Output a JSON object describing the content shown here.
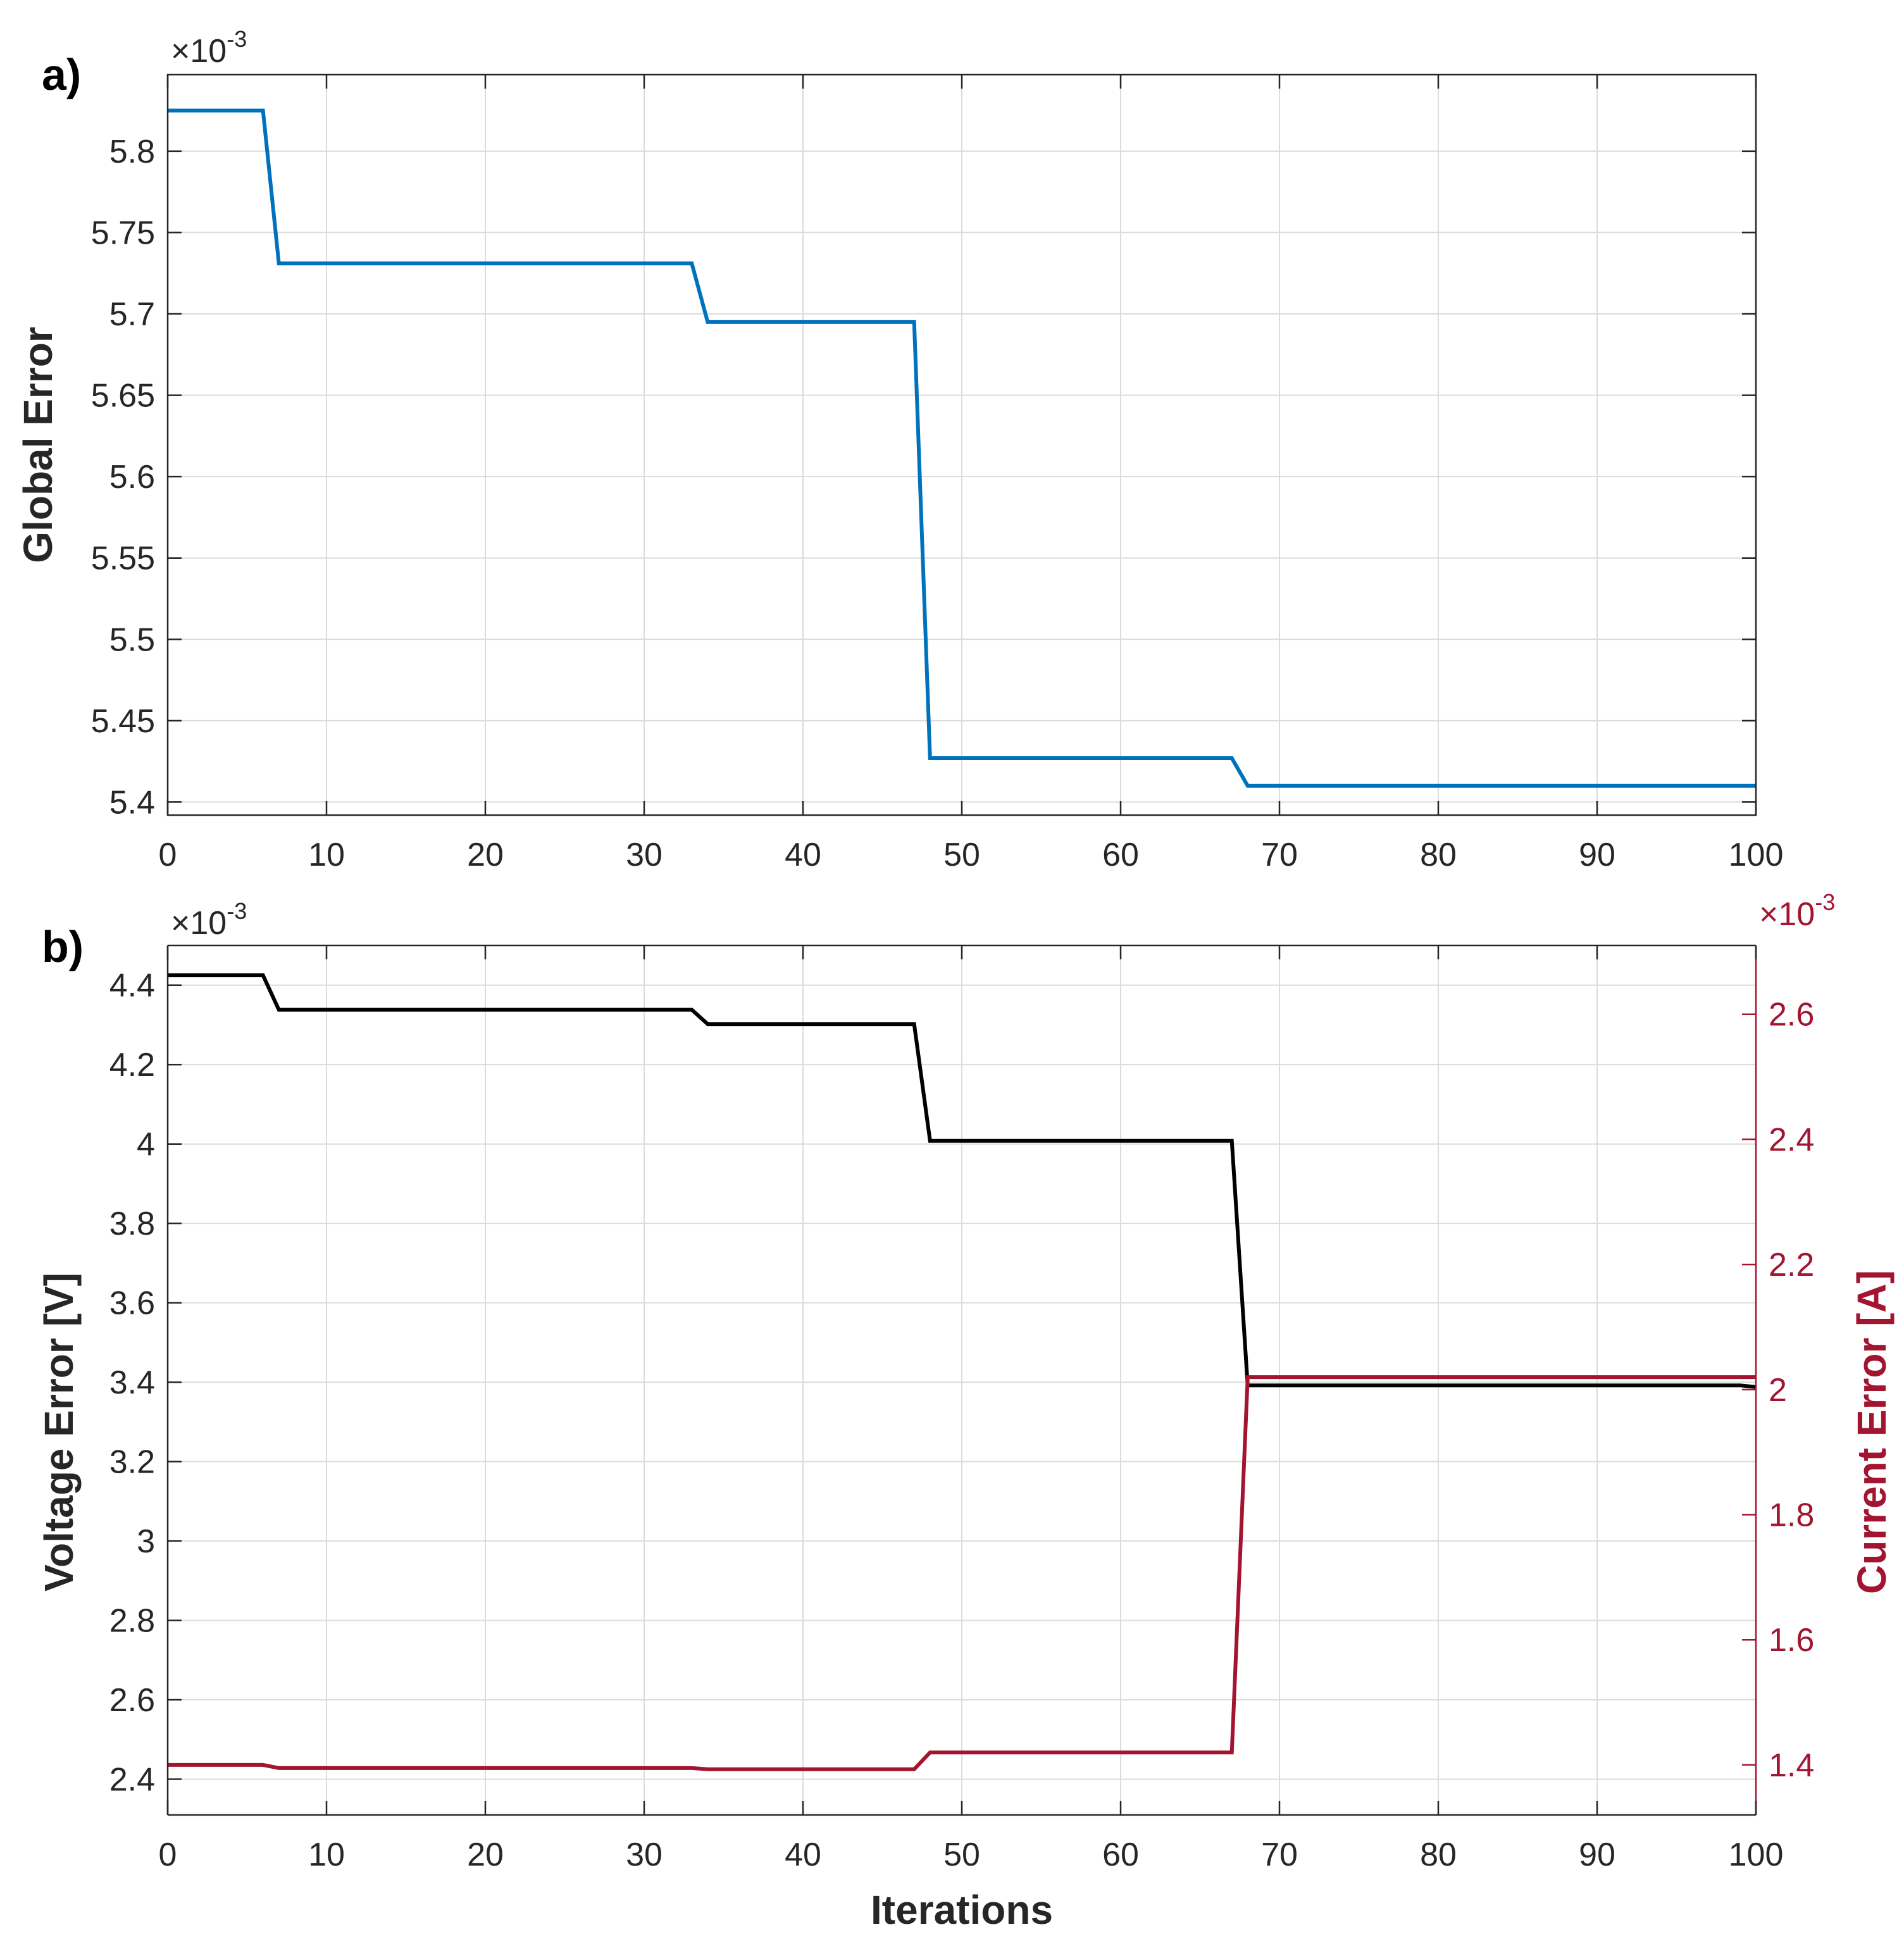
{
  "chart_data": [
    {
      "type": "line",
      "panel_label": "a)",
      "xlabel": "",
      "ylabel": "Global Error",
      "xlim": [
        0,
        100
      ],
      "ylim": [
        5.392,
        5.847
      ],
      "y_exponent": {
        "times": "×10",
        "power": "-3"
      },
      "grid": true,
      "xticks": [
        0,
        10,
        20,
        30,
        40,
        50,
        60,
        70,
        80,
        90,
        100
      ],
      "yticks": [
        5.4,
        5.45,
        5.5,
        5.55,
        5.6,
        5.65,
        5.7,
        5.75,
        5.8
      ],
      "ytick_labels": [
        "5.4",
        "5.45",
        "5.5",
        "5.55",
        "5.6",
        "5.65",
        "5.7",
        "5.75",
        "5.8"
      ],
      "series": [
        {
          "name": "Global Error",
          "color": "#0072BD",
          "x": [
            0,
            6,
            7,
            33,
            34,
            47,
            48,
            67,
            68,
            100
          ],
          "y": [
            5.825,
            5.825,
            5.731,
            5.731,
            5.695,
            5.695,
            5.427,
            5.427,
            5.41,
            5.41
          ]
        }
      ]
    },
    {
      "type": "line",
      "panel_label": "b)",
      "xlabel": "Iterations",
      "ylabel": "Voltage Error [V]",
      "ylabel_right": "Current Error [A]",
      "xlim": [
        0,
        100
      ],
      "ylim": [
        2.31,
        4.5
      ],
      "ylim_right": [
        1.32,
        2.71
      ],
      "y_exponent": {
        "times": "×10",
        "power": "-3"
      },
      "y_exponent_right": {
        "times": "×10",
        "power": "-3"
      },
      "grid": true,
      "xticks": [
        0,
        10,
        20,
        30,
        40,
        50,
        60,
        70,
        80,
        90,
        100
      ],
      "yticks": [
        2.4,
        2.6,
        2.8,
        3.0,
        3.2,
        3.4,
        3.6,
        3.8,
        4.0,
        4.2,
        4.4
      ],
      "ytick_labels": [
        "2.4",
        "2.6",
        "2.8",
        "3",
        "3.2",
        "3.4",
        "3.6",
        "3.8",
        "4",
        "4.2",
        "4.4"
      ],
      "yticks_right": [
        1.4,
        1.6,
        1.8,
        2.0,
        2.2,
        2.4,
        2.6
      ],
      "ytick_labels_right": [
        "1.4",
        "1.6",
        "1.8",
        "2",
        "2.2",
        "2.4",
        "2.6"
      ],
      "right_axis_color": "#A2142F",
      "series": [
        {
          "name": "Voltage Error",
          "axis": "left",
          "color": "#000000",
          "x": [
            0,
            6,
            7,
            33,
            34,
            47,
            48,
            67,
            68,
            99,
            100
          ],
          "y": [
            4.425,
            4.425,
            4.338,
            4.338,
            4.302,
            4.302,
            4.008,
            4.008,
            3.392,
            3.392,
            3.388
          ]
        },
        {
          "name": "Current Error",
          "axis": "right",
          "color": "#A2142F",
          "x": [
            0,
            6,
            7,
            33,
            34,
            47,
            48,
            67,
            68,
            100
          ],
          "y": [
            1.4,
            1.4,
            1.395,
            1.395,
            1.393,
            1.393,
            1.42,
            1.42,
            2.02,
            2.02
          ]
        }
      ]
    }
  ]
}
